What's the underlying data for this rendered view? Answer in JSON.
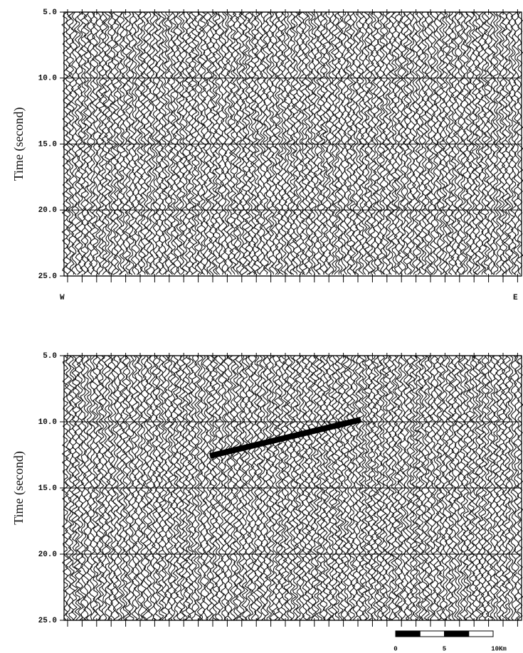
{
  "chart_data": [
    {
      "type": "seismic",
      "y_label": "Time (second)",
      "ylim": [
        5,
        25
      ],
      "yticks": [
        {
          "value": 5,
          "label": "5.0"
        },
        {
          "value": 10,
          "label": "10.0"
        },
        {
          "value": 15,
          "label": "15.0"
        },
        {
          "value": 20,
          "label": "20.0"
        },
        {
          "value": 25,
          "label": "25.0"
        }
      ],
      "grid": true,
      "x_label_left": "W",
      "x_label_right": "E"
    },
    {
      "type": "seismic",
      "y_label": "Time (second)",
      "ylim": [
        5,
        25
      ],
      "yticks": [
        {
          "value": 5,
          "label": "5.0"
        },
        {
          "value": 10,
          "label": "10.0"
        },
        {
          "value": 15,
          "label": "15.0"
        },
        {
          "value": 20,
          "label": "20.0"
        },
        {
          "value": 25,
          "label": "25.0"
        }
      ],
      "grid": true,
      "scale_bar": [
        "0",
        "5",
        "10Km"
      ]
    }
  ]
}
